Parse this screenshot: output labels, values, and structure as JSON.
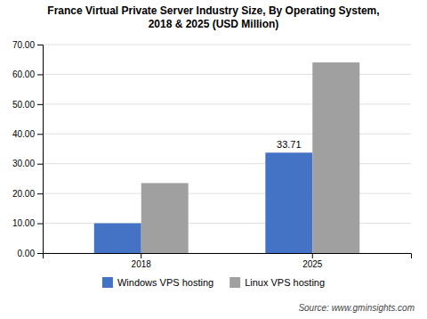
{
  "chart_data": {
    "type": "bar",
    "title": "France Virtual Private Server Industry Size, By Operating System,\n2018 & 2025 (USD Million)",
    "categories": [
      "2018",
      "2025"
    ],
    "series": [
      {
        "name": "Windows VPS hosting",
        "color": "#4472C4",
        "values": [
          10.0,
          33.71
        ]
      },
      {
        "name": "Linux VPS hosting",
        "color": "#A0A0A0",
        "values": [
          23.5,
          64.0
        ]
      }
    ],
    "ylim": [
      0,
      70
    ],
    "yticks": [
      {
        "value": 0,
        "label": "0.00"
      },
      {
        "value": 10,
        "label": "10.00"
      },
      {
        "value": 20,
        "label": "20.00"
      },
      {
        "value": 30,
        "label": "30.00"
      },
      {
        "value": 40,
        "label": "40.00"
      },
      {
        "value": 50,
        "label": "50.00"
      },
      {
        "value": 60,
        "label": "60.00"
      },
      {
        "value": 70,
        "label": "70.00"
      }
    ],
    "grid": true,
    "legend": "bottom",
    "annotations": [
      {
        "text": "33.71",
        "category": "2025",
        "series": "Windows VPS hosting",
        "value": 33.71
      }
    ],
    "source": "Source: www.gminsights.com"
  }
}
